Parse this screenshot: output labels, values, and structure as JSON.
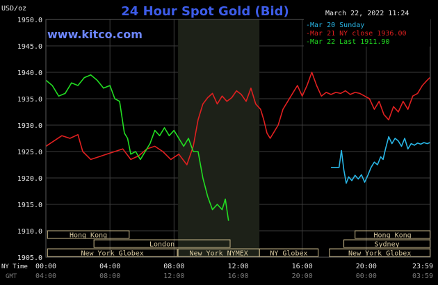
{
  "header": {
    "unit": "USD/oz",
    "title": "24 Hour Spot Gold (Bid)",
    "timestamp": "March 22, 2022 11:24",
    "site": "www.kitco.com"
  },
  "chart_data": {
    "type": "line",
    "title": "24 Hour Spot Gold (Bid)",
    "ylabel": "USD/oz",
    "ylim": [
      1905,
      1950
    ],
    "y_ticks": [
      "1950.0",
      "1945.0",
      "1940.0",
      "1935.0",
      "1930.0",
      "1925.0",
      "1920.0",
      "1915.0",
      "1910.0",
      "1905.0"
    ],
    "xlim_hours": [
      0,
      24
    ],
    "x_row_labels": [
      "NY Time",
      "GMT"
    ],
    "x_ticks_ny": [
      "00:00",
      "04:00",
      "08:00",
      "12:00",
      "16:00",
      "20:00",
      "23:59"
    ],
    "x_ticks_gmt": [
      "04:00",
      "08:00",
      "12:00",
      "16:00",
      "20:00",
      "00:00",
      "03:59"
    ],
    "x_tick_hours": [
      0,
      4,
      8,
      12,
      16,
      20,
      23.98
    ],
    "highlight_hours": [
      8.25,
      13.33
    ],
    "legend": {
      "position": "top-right"
    },
    "series": [
      {
        "name": "Mar 20 Sunday",
        "legend_label": "-Mar 20 Sunday",
        "color": "#29b6e6",
        "x": [
          17.8,
          18.3,
          18.45,
          18.6,
          18.75,
          18.9,
          19.1,
          19.3,
          19.5,
          19.7,
          19.9,
          20.1,
          20.3,
          20.5,
          20.7,
          20.9,
          21.05,
          21.2,
          21.4,
          21.6,
          21.8,
          22.0,
          22.2,
          22.4,
          22.6,
          22.8,
          23.0,
          23.2,
          23.4,
          23.6,
          23.8,
          23.98
        ],
        "y": [
          1922.0,
          1922.0,
          1925.2,
          1921.5,
          1919.0,
          1920.2,
          1919.5,
          1920.5,
          1919.8,
          1920.6,
          1919.2,
          1920.5,
          1922.0,
          1923.0,
          1922.5,
          1924.0,
          1923.5,
          1925.5,
          1927.8,
          1926.5,
          1927.5,
          1927.0,
          1926.0,
          1927.5,
          1925.5,
          1926.5,
          1926.2,
          1926.6,
          1926.4,
          1926.7,
          1926.5,
          1926.7
        ]
      },
      {
        "name": "Mar 21 NY close 1936.00",
        "legend_label": "-Mar 21 NY close 1936.00",
        "color": "#e02020",
        "x": [
          0,
          0.5,
          1.0,
          1.5,
          2.0,
          2.3,
          2.8,
          3.3,
          3.8,
          4.3,
          4.8,
          5.3,
          5.8,
          6.3,
          6.8,
          7.3,
          7.8,
          8.3,
          8.8,
          9.2,
          9.5,
          9.8,
          10.1,
          10.4,
          10.7,
          11.0,
          11.3,
          11.6,
          11.9,
          12.2,
          12.5,
          12.8,
          13.1,
          13.4,
          13.6,
          13.8,
          14.0,
          14.2,
          14.5,
          14.8,
          15.1,
          15.4,
          15.7,
          16.0,
          16.3,
          16.6,
          16.9,
          17.2,
          17.5,
          17.8,
          18.1,
          18.4,
          18.7,
          19.0,
          19.3,
          19.6,
          19.9,
          20.2,
          20.5,
          20.8,
          21.1,
          21.4,
          21.7,
          22.0,
          22.3,
          22.6,
          22.9,
          23.2,
          23.5,
          23.8,
          23.98
        ],
        "y": [
          1926.0,
          1927.0,
          1928.0,
          1927.5,
          1928.2,
          1925.0,
          1923.5,
          1924.0,
          1924.5,
          1925.0,
          1925.5,
          1923.5,
          1924.2,
          1925.5,
          1926.0,
          1925.0,
          1923.5,
          1924.5,
          1922.5,
          1926.0,
          1931.0,
          1934.0,
          1935.2,
          1936.0,
          1934.0,
          1935.5,
          1934.5,
          1935.2,
          1936.5,
          1935.8,
          1934.5,
          1937.0,
          1934.0,
          1933.0,
          1931.0,
          1928.5,
          1927.5,
          1928.5,
          1930.0,
          1933.0,
          1934.5,
          1936.0,
          1937.5,
          1935.5,
          1937.5,
          1940.0,
          1937.5,
          1935.5,
          1936.2,
          1935.8,
          1936.2,
          1936.0,
          1936.5,
          1935.8,
          1936.2,
          1936.0,
          1935.5,
          1935.0,
          1933.0,
          1934.5,
          1932.0,
          1931.0,
          1933.5,
          1932.5,
          1934.5,
          1933.0,
          1935.5,
          1936.0,
          1937.5,
          1938.5,
          1939.0
        ]
      },
      {
        "name": "Mar 22 Last 1911.90",
        "legend_label": "-Mar 22 Last 1911.90",
        "color": "#22dd22",
        "x": [
          0,
          0.4,
          0.8,
          1.2,
          1.6,
          2.0,
          2.4,
          2.8,
          3.2,
          3.6,
          4.0,
          4.3,
          4.6,
          4.9,
          5.1,
          5.3,
          5.6,
          5.9,
          6.2,
          6.5,
          6.8,
          7.1,
          7.4,
          7.7,
          8.0,
          8.3,
          8.6,
          8.9,
          9.2,
          9.5,
          9.8,
          10.1,
          10.4,
          10.7,
          11.0,
          11.2,
          11.4
        ],
        "y": [
          1938.5,
          1937.5,
          1935.5,
          1936.0,
          1938.0,
          1937.5,
          1939.0,
          1939.5,
          1938.5,
          1937.0,
          1937.5,
          1935.0,
          1934.5,
          1928.5,
          1927.5,
          1924.5,
          1925.0,
          1923.5,
          1925.0,
          1926.5,
          1929.0,
          1928.0,
          1929.5,
          1928.0,
          1929.0,
          1927.5,
          1926.0,
          1927.5,
          1925.0,
          1925.0,
          1920.0,
          1916.5,
          1914.0,
          1915.0,
          1914.0,
          1916.0,
          1911.9
        ]
      }
    ]
  },
  "sessions": [
    {
      "label": "Hong Kong",
      "start": 0.1,
      "end": 5.2
    },
    {
      "label": "Hong Kong",
      "start": 19.3,
      "end": 23.98
    },
    {
      "label": "London",
      "start": 3.0,
      "end": 11.5
    },
    {
      "label": "Sydney",
      "start": 18.6,
      "end": 23.98
    },
    {
      "label": "New York Globex",
      "start": 0.1,
      "end": 8.2
    },
    {
      "label": "New York NYMEX",
      "start": 8.25,
      "end": 13.33
    },
    {
      "label": "NY Globex",
      "start": 13.33,
      "end": 17.0
    },
    {
      "label": "New York Globex",
      "start": 17.7,
      "end": 23.98
    }
  ],
  "colors": {
    "background": "#000000",
    "grid": "#3d3d3d",
    "highlight": "#1d2118",
    "session_border": "#c8b88a",
    "title": "#3d5ce8",
    "site": "#6d86ff"
  }
}
